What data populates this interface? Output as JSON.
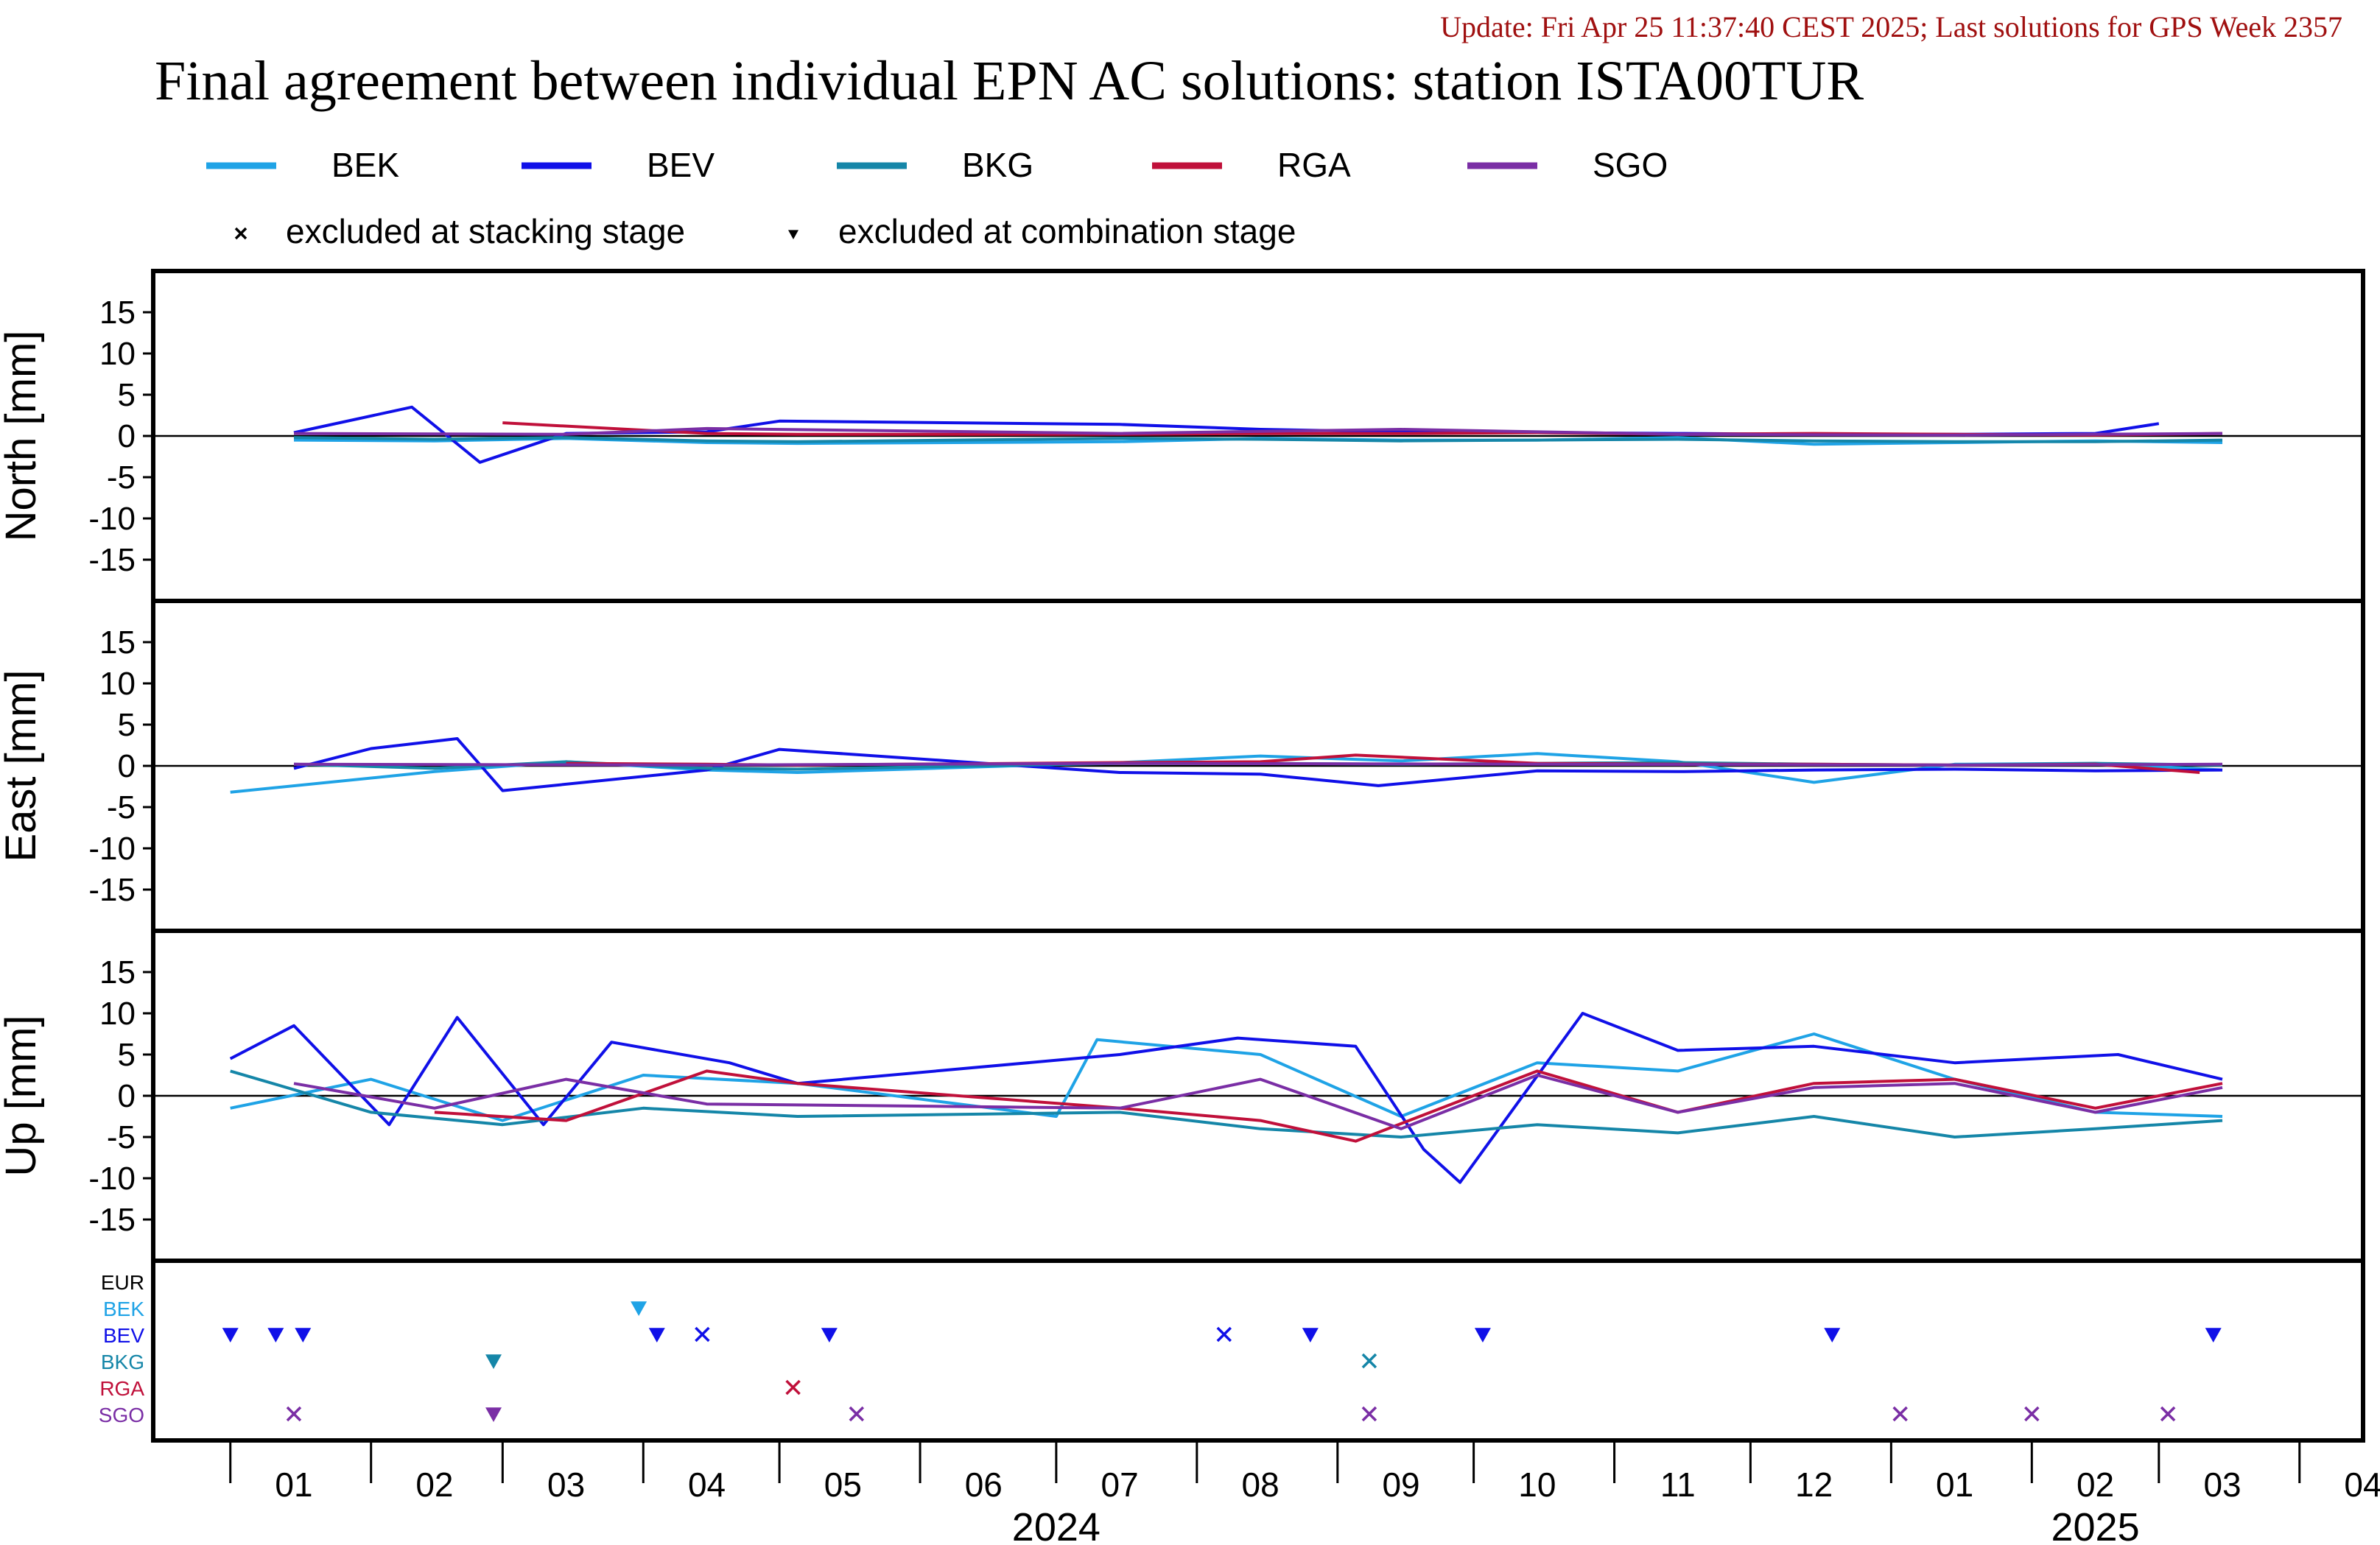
{
  "header": {
    "update_text": "Update: Fri Apr 25 11:37:40 CEST 2025; Last solutions for GPS Week 2357",
    "title": "Final agreement between individual EPN AC solutions: station ISTA00TUR"
  },
  "colors": {
    "BEK": "#1fa3e6",
    "BEV": "#1010e8",
    "BKG": "#1586a8",
    "RGA": "#c0103a",
    "SGO": "#7a2ea5",
    "EUR": "#000000",
    "update_text": "#a01010"
  },
  "legend": {
    "series": [
      "BEK",
      "BEV",
      "BKG",
      "RGA",
      "SGO"
    ],
    "marker_stacking_label": "excluded at stacking stage",
    "marker_combination_label": "excluded at combination stage"
  },
  "chart_data": {
    "type": "line",
    "x_unit": "month",
    "x_range": [
      "2023-12-15",
      "2025-04-15"
    ],
    "x_ticks": [
      "01",
      "02",
      "03",
      "04",
      "05",
      "06",
      "07",
      "08",
      "09",
      "10",
      "11",
      "12",
      "01",
      "02",
      "03",
      "04"
    ],
    "year_labels": [
      "2024",
      "2025"
    ],
    "ylim": [
      -20,
      20
    ],
    "yticks": [
      15,
      10,
      5,
      0,
      -5,
      -10,
      -15
    ],
    "data_gap": [
      "2024-05-06",
      "2024-07-01"
    ],
    "panels": [
      {
        "ylabel": "North [mm]",
        "series": [
          {
            "name": "BEK",
            "x": [
              "2024-01-15",
              "2024-02-15",
              "2024-03-15",
              "2024-04-15",
              "2024-05-05",
              "2024-07-15",
              "2024-08-15",
              "2024-09-15",
              "2024-10-15",
              "2024-11-15",
              "2024-12-15",
              "2025-01-15",
              "2025-02-15",
              "2025-03-15"
            ],
            "y": [
              -0.5,
              -0.6,
              -0.3,
              -0.8,
              -0.9,
              -0.7,
              -0.3,
              -0.5,
              -0.5,
              -0.2,
              -1.0,
              -0.8,
              -0.6,
              -0.8
            ]
          },
          {
            "name": "BEV",
            "x": [
              "2024-01-15",
              "2024-02-10",
              "2024-02-25",
              "2024-03-15",
              "2024-04-15",
              "2024-05-01",
              "2024-07-15",
              "2024-08-15",
              "2024-09-15",
              "2024-10-15",
              "2024-11-15",
              "2024-12-15",
              "2025-01-15",
              "2025-02-15",
              "2025-03-01"
            ],
            "y": [
              0.4,
              3.5,
              -3.2,
              0.3,
              0.5,
              1.8,
              1.4,
              0.8,
              0.5,
              0.4,
              0.3,
              0.2,
              0.2,
              0.3,
              1.5
            ]
          },
          {
            "name": "BKG",
            "x": [
              "2024-01-15",
              "2024-02-15",
              "2024-03-15",
              "2024-04-15",
              "2024-05-05",
              "2024-07-15",
              "2024-08-15",
              "2024-09-15",
              "2024-10-15",
              "2024-11-15",
              "2024-12-15",
              "2025-01-15",
              "2025-02-15",
              "2025-03-15"
            ],
            "y": [
              -0.2,
              -0.4,
              -0.2,
              -0.6,
              -0.7,
              -0.3,
              -0.4,
              -0.6,
              -0.5,
              -0.4,
              -0.6,
              -0.7,
              -0.7,
              -0.5
            ]
          },
          {
            "name": "RGA",
            "x": [
              "2024-03-01",
              "2024-04-15",
              "2024-05-05",
              "2024-07-15",
              "2024-08-15",
              "2024-09-15",
              "2024-10-15",
              "2024-11-15",
              "2024-12-15",
              "2025-01-15",
              "2025-02-15",
              "2025-03-15"
            ],
            "y": [
              1.6,
              0.3,
              0.2,
              0.2,
              0.3,
              0.3,
              0.4,
              0.2,
              0.3,
              0.2,
              0.1,
              0.3
            ]
          },
          {
            "name": "SGO",
            "x": [
              "2024-01-15",
              "2024-03-15",
              "2024-04-15",
              "2024-07-15",
              "2024-09-15",
              "2024-11-15",
              "2025-01-15",
              "2025-03-15"
            ],
            "y": [
              0.3,
              0.2,
              0.9,
              0.3,
              0.8,
              0.2,
              0.1,
              0.3
            ]
          }
        ]
      },
      {
        "ylabel": "East [mm]",
        "series": [
          {
            "name": "BEK",
            "x": [
              "2024-01-01",
              "2024-02-15",
              "2024-03-15",
              "2024-04-15",
              "2024-05-05",
              "2024-07-15",
              "2024-08-15",
              "2024-09-15",
              "2024-10-15",
              "2024-11-15",
              "2024-12-15",
              "2025-01-15",
              "2025-02-15",
              "2025-03-15"
            ],
            "y": [
              -3.2,
              -0.7,
              0.5,
              -0.5,
              -0.8,
              0.4,
              1.2,
              0.6,
              1.5,
              0.5,
              -2.0,
              0.2,
              0.3,
              -0.5
            ]
          },
          {
            "name": "BEV",
            "x": [
              "2024-01-15",
              "2024-02-01",
              "2024-02-20",
              "2024-03-01",
              "2024-04-15",
              "2024-05-01",
              "2024-07-15",
              "2024-08-15",
              "2024-09-10",
              "2024-10-15",
              "2024-11-15",
              "2024-12-15",
              "2025-01-15",
              "2025-02-15",
              "2025-03-15"
            ],
            "y": [
              -0.3,
              2.1,
              3.3,
              -3.0,
              -0.5,
              2.0,
              -0.8,
              -1.0,
              -2.4,
              -0.6,
              -0.7,
              -0.5,
              -0.4,
              -0.6,
              -0.5
            ]
          },
          {
            "name": "BKG",
            "x": [
              "2024-01-15",
              "2024-02-15",
              "2024-03-15",
              "2024-04-15",
              "2024-05-05",
              "2024-07-15",
              "2024-08-15",
              "2024-09-15",
              "2024-10-15",
              "2024-11-15",
              "2024-12-15",
              "2025-01-15",
              "2025-02-15",
              "2025-03-15"
            ],
            "y": [
              0.2,
              -0.3,
              0.5,
              -0.3,
              -0.4,
              0.3,
              0.3,
              0.2,
              0.3,
              0.4,
              0.2,
              0.1,
              0.3,
              0.1
            ]
          },
          {
            "name": "RGA",
            "x": [
              "2024-03-15",
              "2024-04-15",
              "2024-05-05",
              "2024-07-15",
              "2024-08-15",
              "2024-09-05",
              "2024-10-15",
              "2024-11-15",
              "2024-12-15",
              "2025-01-15",
              "2025-02-15",
              "2025-03-10"
            ],
            "y": [
              0.3,
              0.2,
              0.1,
              0.4,
              0.5,
              1.3,
              0.3,
              0.2,
              0.2,
              0.1,
              0.2,
              -0.8
            ]
          },
          {
            "name": "SGO",
            "x": [
              "2024-01-15",
              "2024-04-15",
              "2024-07-15",
              "2024-10-15",
              "2025-01-15",
              "2025-03-15"
            ],
            "y": [
              0.2,
              0.1,
              0.3,
              0.2,
              0.1,
              0.2
            ]
          }
        ]
      },
      {
        "ylabel": "Up [mm]",
        "series": [
          {
            "name": "BEK",
            "x": [
              "2024-01-01",
              "2024-02-01",
              "2024-03-01",
              "2024-04-01",
              "2024-05-05",
              "2024-07-01",
              "2024-07-10",
              "2024-08-15",
              "2024-09-15",
              "2024-10-15",
              "2024-11-15",
              "2024-12-15",
              "2025-01-15",
              "2025-02-15",
              "2025-03-15"
            ],
            "y": [
              -1.5,
              2.0,
              -3.0,
              2.5,
              1.5,
              -2.5,
              6.8,
              5.0,
              -2.5,
              4.0,
              3.0,
              7.5,
              2.0,
              -2.0,
              -2.5
            ]
          },
          {
            "name": "BEV",
            "x": [
              "2024-01-01",
              "2024-01-15",
              "2024-02-05",
              "2024-02-20",
              "2024-03-10",
              "2024-03-25",
              "2024-04-20",
              "2024-05-05",
              "2024-07-15",
              "2024-08-10",
              "2024-09-05",
              "2024-09-20",
              "2024-09-28",
              "2024-10-25",
              "2024-11-15",
              "2024-12-15",
              "2025-01-15",
              "2025-02-20",
              "2025-03-15"
            ],
            "y": [
              4.5,
              8.5,
              -3.5,
              9.5,
              -3.5,
              6.5,
              4.0,
              1.5,
              5.0,
              7.0,
              6.0,
              -6.5,
              -10.5,
              10.0,
              5.5,
              6.0,
              4.0,
              5.0,
              2.0
            ]
          },
          {
            "name": "BKG",
            "x": [
              "2024-01-01",
              "2024-02-01",
              "2024-03-01",
              "2024-04-01",
              "2024-05-05",
              "2024-07-15",
              "2024-08-15",
              "2024-09-15",
              "2024-10-15",
              "2024-11-15",
              "2024-12-15",
              "2025-01-15",
              "2025-02-15",
              "2025-03-15"
            ],
            "y": [
              3.0,
              -2.0,
              -3.5,
              -1.5,
              -2.5,
              -2.0,
              -4.0,
              -5.0,
              -3.5,
              -4.5,
              -2.5,
              -5.0,
              -4.0,
              -3.0
            ]
          },
          {
            "name": "RGA",
            "x": [
              "2024-02-15",
              "2024-03-15",
              "2024-04-15",
              "2024-05-05",
              "2024-07-15",
              "2024-08-15",
              "2024-09-05",
              "2024-10-15",
              "2024-11-15",
              "2024-12-15",
              "2025-01-15",
              "2025-02-15",
              "2025-03-15"
            ],
            "y": [
              -2.0,
              -3.0,
              3.0,
              1.5,
              -1.5,
              -3.0,
              -5.5,
              3.0,
              -2.0,
              1.5,
              2.0,
              -1.5,
              1.5
            ]
          },
          {
            "name": "SGO",
            "x": [
              "2024-01-15",
              "2024-02-15",
              "2024-03-15",
              "2024-04-15",
              "2024-07-15",
              "2024-08-15",
              "2024-09-15",
              "2024-10-15",
              "2024-11-15",
              "2024-12-15",
              "2025-01-15",
              "2025-02-15",
              "2025-03-15"
            ],
            "y": [
              1.5,
              -1.5,
              2.0,
              -1.0,
              -1.5,
              2.0,
              -4.0,
              2.5,
              -2.0,
              1.0,
              1.5,
              -2.0,
              1.0
            ]
          }
        ]
      }
    ],
    "exclusions": {
      "rows": [
        "EUR",
        "BEK",
        "BEV",
        "BKG",
        "RGA",
        "SGO"
      ],
      "markers": [
        {
          "row": "BEK",
          "date": "2024-03-31",
          "stage": "combination"
        },
        {
          "row": "BEV",
          "date": "2024-01-01",
          "stage": "combination"
        },
        {
          "row": "BEV",
          "date": "2024-01-11",
          "stage": "combination"
        },
        {
          "row": "BEV",
          "date": "2024-01-17",
          "stage": "combination"
        },
        {
          "row": "BEV",
          "date": "2024-04-04",
          "stage": "combination"
        },
        {
          "row": "BEV",
          "date": "2024-04-14",
          "stage": "stacking"
        },
        {
          "row": "BEV",
          "date": "2024-05-12",
          "stage": "combination"
        },
        {
          "row": "BEV",
          "date": "2024-08-07",
          "stage": "stacking"
        },
        {
          "row": "BEV",
          "date": "2024-08-26",
          "stage": "combination"
        },
        {
          "row": "BEV",
          "date": "2024-10-03",
          "stage": "combination"
        },
        {
          "row": "BEV",
          "date": "2024-12-19",
          "stage": "combination"
        },
        {
          "row": "BEV",
          "date": "2025-03-13",
          "stage": "combination"
        },
        {
          "row": "BKG",
          "date": "2024-02-28",
          "stage": "combination"
        },
        {
          "row": "BKG",
          "date": "2024-09-08",
          "stage": "stacking"
        },
        {
          "row": "RGA",
          "date": "2024-05-04",
          "stage": "stacking"
        },
        {
          "row": "SGO",
          "date": "2024-01-15",
          "stage": "stacking"
        },
        {
          "row": "SGO",
          "date": "2024-02-28",
          "stage": "combination"
        },
        {
          "row": "SGO",
          "date": "2024-05-18",
          "stage": "stacking"
        },
        {
          "row": "SGO",
          "date": "2024-09-08",
          "stage": "stacking"
        },
        {
          "row": "SGO",
          "date": "2025-01-03",
          "stage": "stacking"
        },
        {
          "row": "SGO",
          "date": "2025-02-01",
          "stage": "stacking"
        },
        {
          "row": "SGO",
          "date": "2025-03-03",
          "stage": "stacking"
        }
      ]
    }
  }
}
